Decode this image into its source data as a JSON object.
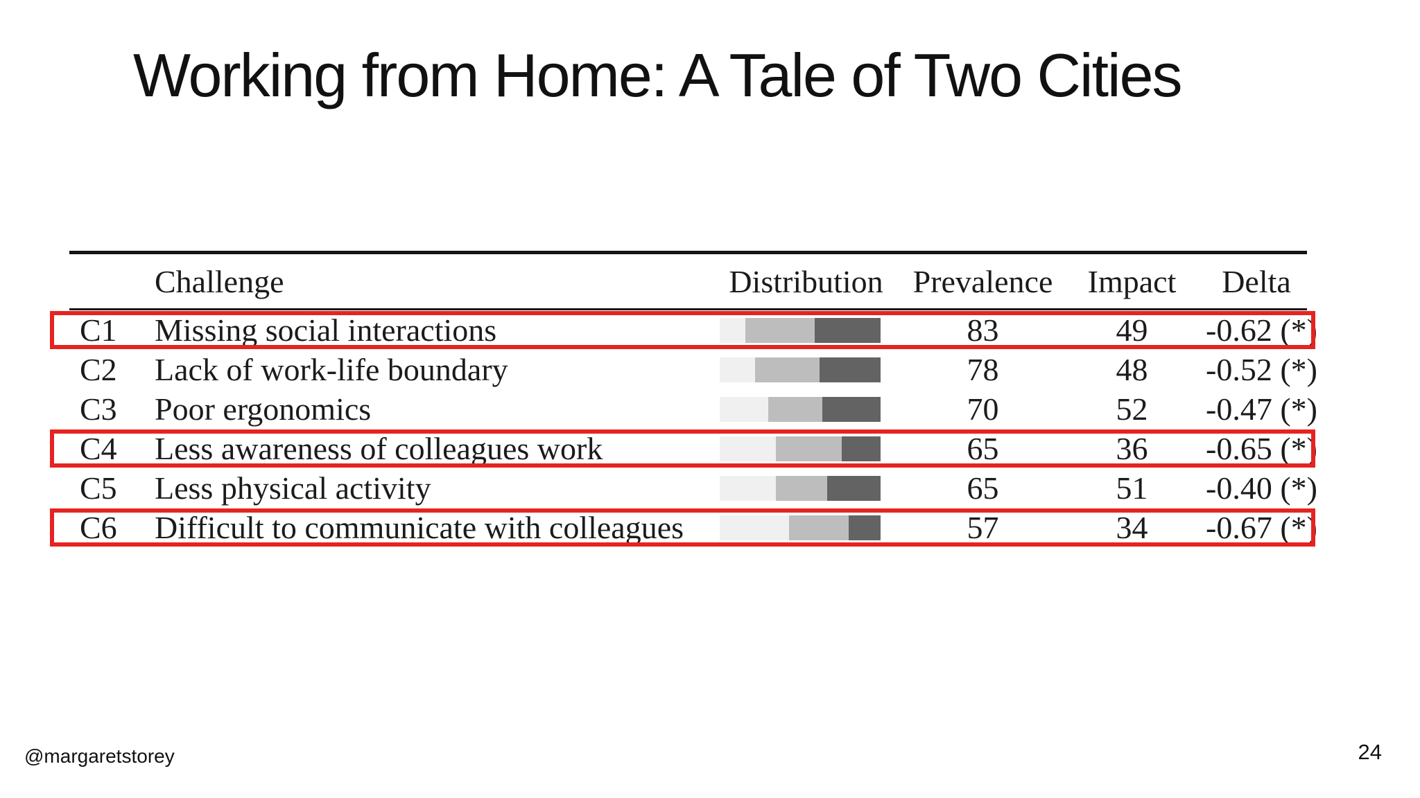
{
  "slide": {
    "title": "Working from Home: A Tale of Two Cities",
    "footer": {
      "handle": "@margaretstorey",
      "page_number": "24"
    }
  },
  "table": {
    "headers": [
      "Challenge",
      "Distribution",
      "Prevalence",
      "Impact",
      "Delta"
    ],
    "distribution_colors": [
      "#f0f0f0",
      "#bdbdbd",
      "#636363"
    ],
    "highlight_color": "#e52421",
    "rows": [
      {
        "id": "C1",
        "challenge": "Missing social interactions",
        "distribution": [
          16,
          43,
          41
        ],
        "prevalence": "83",
        "impact": "49",
        "delta": "-0.62 (*)",
        "highlighted": true
      },
      {
        "id": "C2",
        "challenge": "Lack of work-life boundary",
        "distribution": [
          22,
          40,
          38
        ],
        "prevalence": "78",
        "impact": "48",
        "delta": "-0.52 (*)",
        "highlighted": false
      },
      {
        "id": "C3",
        "challenge": "Poor ergonomics",
        "distribution": [
          30,
          34,
          36
        ],
        "prevalence": "70",
        "impact": "52",
        "delta": "-0.47 (*)",
        "highlighted": false
      },
      {
        "id": "C4",
        "challenge": "Less awareness of colleagues work",
        "distribution": [
          35,
          41,
          24
        ],
        "prevalence": "65",
        "impact": "36",
        "delta": "-0.65 (*)",
        "highlighted": true
      },
      {
        "id": "C5",
        "challenge": "Less physical activity",
        "distribution": [
          35,
          32,
          33
        ],
        "prevalence": "65",
        "impact": "51",
        "delta": "-0.40 (*)",
        "highlighted": false
      },
      {
        "id": "C6",
        "challenge": "Difficult to communicate with colleagues",
        "distribution": [
          43,
          37,
          20
        ],
        "prevalence": "57",
        "impact": "34",
        "delta": "-0.67 (*)",
        "highlighted": true
      }
    ]
  },
  "chart_data": {
    "type": "table",
    "title": "Working from Home challenges",
    "columns": [
      "Challenge",
      "Distribution (light/medium/dark %)",
      "Prevalence",
      "Impact",
      "Delta"
    ],
    "rows": [
      [
        "C1 Missing social interactions",
        [
          16,
          43,
          41
        ],
        83,
        49,
        "-0.62 (*)"
      ],
      [
        "C2 Lack of work-life boundary",
        [
          22,
          40,
          38
        ],
        78,
        48,
        "-0.52 (*)"
      ],
      [
        "C3 Poor ergonomics",
        [
          30,
          34,
          36
        ],
        70,
        52,
        "-0.47 (*)"
      ],
      [
        "C4 Less awareness of colleagues work",
        [
          35,
          41,
          24
        ],
        65,
        36,
        "-0.65 (*)"
      ],
      [
        "C5 Less physical activity",
        [
          35,
          32,
          33
        ],
        65,
        51,
        "-0.40 (*)"
      ],
      [
        "C6 Difficult to communicate with colleagues",
        [
          43,
          37,
          20
        ],
        57,
        34,
        "-0.67 (*)"
      ]
    ],
    "highlighted_rows": [
      "C1",
      "C4",
      "C6"
    ]
  }
}
